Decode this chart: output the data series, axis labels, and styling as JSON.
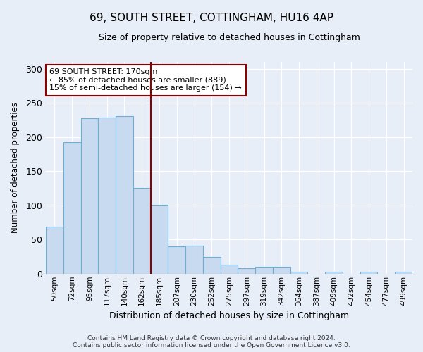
{
  "title": "69, SOUTH STREET, COTTINGHAM, HU16 4AP",
  "subtitle": "Size of property relative to detached houses in Cottingham",
  "xlabel": "Distribution of detached houses by size in Cottingham",
  "ylabel": "Number of detached properties",
  "bar_color": "#c8daef",
  "bar_edge_color": "#6baed6",
  "categories": [
    "50sqm",
    "72sqm",
    "95sqm",
    "117sqm",
    "140sqm",
    "162sqm",
    "185sqm",
    "207sqm",
    "230sqm",
    "252sqm",
    "275sqm",
    "297sqm",
    "319sqm",
    "342sqm",
    "364sqm",
    "387sqm",
    "409sqm",
    "432sqm",
    "454sqm",
    "477sqm",
    "499sqm"
  ],
  "values": [
    69,
    193,
    228,
    229,
    231,
    126,
    101,
    40,
    41,
    25,
    13,
    8,
    10,
    10,
    3,
    0,
    3,
    0,
    3,
    0,
    3
  ],
  "ylim": [
    0,
    310
  ],
  "yticks": [
    0,
    50,
    100,
    150,
    200,
    250,
    300
  ],
  "vline_x": 5.5,
  "vline_color": "#8b0000",
  "annotation_text": "69 SOUTH STREET: 170sqm\n← 85% of detached houses are smaller (889)\n15% of semi-detached houses are larger (154) →",
  "annotation_box_color": "#ffffff",
  "annotation_box_edge_color": "#8b0000",
  "footer_line1": "Contains HM Land Registry data © Crown copyright and database right 2024.",
  "footer_line2": "Contains public sector information licensed under the Open Government Licence v3.0.",
  "background_color": "#e8eef8",
  "plot_bg_color": "#e8eef8",
  "grid_color": "#ffffff",
  "title_fontsize": 11,
  "subtitle_fontsize": 9
}
